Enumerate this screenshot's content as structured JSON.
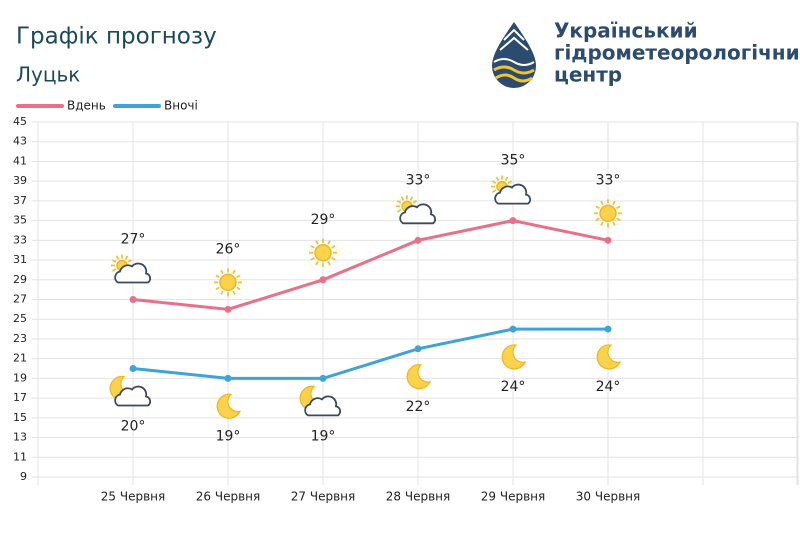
{
  "chart_data": {
    "type": "line",
    "title": "Графік прогнозу",
    "subtitle": "Луцьк",
    "logo_text": [
      "Український",
      "гідрометеорологічний",
      "центр"
    ],
    "categories": [
      "25 Червня",
      "26 Червня",
      "27 Червня",
      "28 Червня",
      "29 Червня",
      "30 Червня"
    ],
    "series": [
      {
        "name": "Вдень",
        "color": "#e8718a",
        "values": [
          27,
          26,
          29,
          33,
          35,
          33
        ],
        "value_labels": [
          "27°",
          "26°",
          "29°",
          "33°",
          "35°",
          "33°"
        ]
      },
      {
        "name": "Вночі",
        "color": "#3fa3d6",
        "values": [
          20,
          19,
          19,
          22,
          24,
          24
        ],
        "value_labels": [
          "20°",
          "19°",
          "19°",
          "22°",
          "24°",
          "24°"
        ]
      }
    ],
    "ylim": [
      9,
      45
    ],
    "yticks": [
      9,
      11,
      13,
      15,
      17,
      19,
      21,
      23,
      25,
      27,
      29,
      31,
      33,
      35,
      37,
      39,
      41,
      43,
      45
    ],
    "grid": true,
    "legend": "top-left"
  }
}
